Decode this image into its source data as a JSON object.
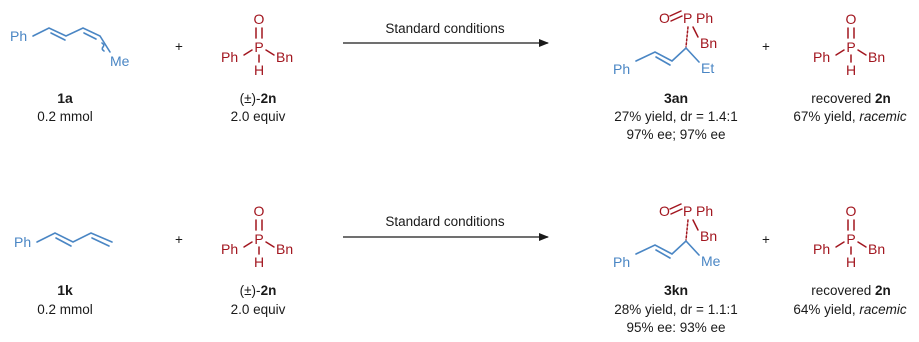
{
  "rows": [
    {
      "diene": {
        "ph": "Ph",
        "me": "Me",
        "label": "1a",
        "amount": "0.2 mmol"
      },
      "plus1": "+",
      "reagent": {
        "o": "O",
        "p": "P",
        "ph": "Ph",
        "h": "H",
        "bn": "Bn",
        "label_prefix": "(±)-",
        "label_id": "2n",
        "amount": "2.0 equiv"
      },
      "arrow_label": "Standard conditions",
      "product": {
        "o": "O",
        "p": "P",
        "ph": "Ph",
        "bn": "Bn",
        "ph2": "Ph",
        "alkyl": "Et",
        "label": "3an",
        "line1": "27% yield, dr = 1.4:1",
        "line2": "97% ee; 97% ee"
      },
      "plus2": "+",
      "recovered": {
        "o": "O",
        "p": "P",
        "ph": "Ph",
        "h": "H",
        "bn": "Bn",
        "label_prefix": "recovered ",
        "label_id": "2n",
        "yield": "67% yield, ",
        "racemic": "racemic"
      }
    },
    {
      "diene": {
        "ph": "Ph",
        "label": "1k",
        "amount": "0.2 mmol"
      },
      "plus1": "+",
      "reagent": {
        "o": "O",
        "p": "P",
        "ph": "Ph",
        "h": "H",
        "bn": "Bn",
        "label_prefix": "(±)-",
        "label_id": "2n",
        "amount": "2.0 equiv"
      },
      "arrow_label": "Standard conditions",
      "product": {
        "o": "O",
        "p": "P",
        "ph": "Ph",
        "bn": "Bn",
        "ph2": "Ph",
        "alkyl": "Me",
        "label": "3kn",
        "line1": "28% yield, dr = 1.1:1",
        "line2": "95% ee: 93% ee"
      },
      "plus2": "+",
      "recovered": {
        "o": "O",
        "p": "P",
        "ph": "Ph",
        "h": "H",
        "bn": "Bn",
        "label_prefix": "recovered ",
        "label_id": "2n",
        "yield": "64% yield, ",
        "racemic": "racemic"
      }
    }
  ],
  "colors": {
    "substrate": "#4a86c4",
    "reagent": "#a2161f",
    "text": "#1a1a1a"
  }
}
